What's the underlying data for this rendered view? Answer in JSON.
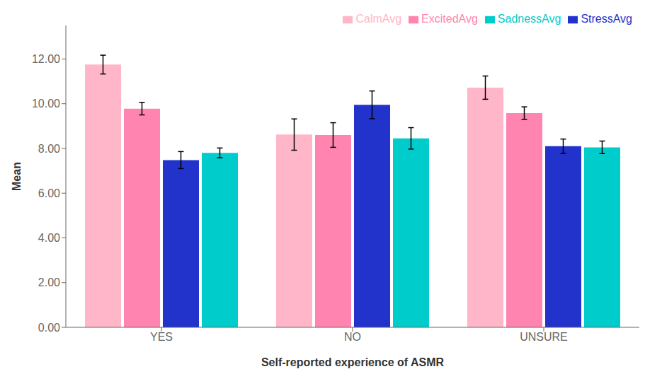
{
  "chart_data": {
    "type": "bar",
    "categories": [
      "YES",
      "NO",
      "UNSURE"
    ],
    "series": [
      {
        "name": "CalmAvg",
        "color": "#FFB6C8",
        "values": [
          11.75,
          8.62,
          10.72
        ],
        "errors": [
          0.42,
          0.7,
          0.52
        ]
      },
      {
        "name": "ExcitedAvg",
        "color": "#FF85B0",
        "values": [
          9.78,
          8.6,
          9.58
        ],
        "errors": [
          0.28,
          0.55,
          0.28
        ]
      },
      {
        "name": "StressAvg",
        "color": "#2233CC",
        "values": [
          7.48,
          9.95,
          8.1
        ],
        "errors": [
          0.38,
          0.62,
          0.32
        ]
      },
      {
        "name": "SadnessAvg",
        "color": "#00CCCC",
        "values": [
          7.8,
          8.45,
          8.05
        ],
        "errors": [
          0.22,
          0.48,
          0.28
        ]
      }
    ],
    "xlabel": "Self-reported experience of ASMR",
    "ylabel": "Mean",
    "ylim": [
      0,
      13.5
    ],
    "yticks": [
      {
        "value": 0,
        "label": "0.00"
      },
      {
        "value": 2,
        "label": "2.00"
      },
      {
        "value": 4,
        "label": "4.00"
      },
      {
        "value": 6,
        "label": "6.00"
      },
      {
        "value": 8,
        "label": "8.00"
      },
      {
        "value": 10,
        "label": "10.00"
      },
      {
        "value": 12,
        "label": "12.00"
      }
    ],
    "legend": "upper right",
    "grid": false
  }
}
